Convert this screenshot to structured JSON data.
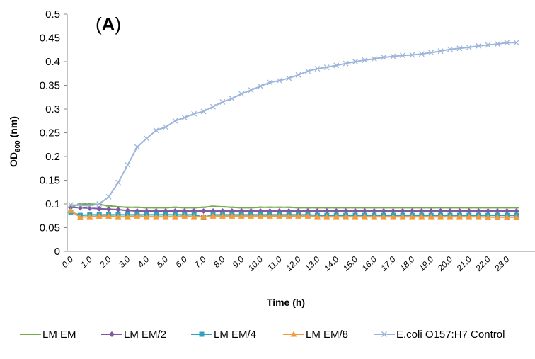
{
  "chart_data": {
    "type": "line",
    "panel_label_prefix": "(",
    "panel_label_letter": "A",
    "panel_label_suffix": ")",
    "xlabel": "Time (h)",
    "ylabel": "OD",
    "ylabel_subscript": "600",
    "ylabel_suffix": " (nm)",
    "ylim": [
      0,
      0.5
    ],
    "yticks": [
      "0",
      "0.05",
      "0.1",
      "0.15",
      "0.2",
      "0.25",
      "0.3",
      "0.35",
      "0.4",
      "0.45",
      "0.5"
    ],
    "x_step": 0.5,
    "xticks": [
      "0.0",
      "1.0",
      "2.0",
      "3.0",
      "4.0",
      "5.0",
      "6.0",
      "7.0",
      "8.0",
      "9.0",
      "10.0",
      "11.0",
      "12.0",
      "13.0",
      "14.0",
      "15.0",
      "16.0",
      "17.0",
      "18.0",
      "19.0",
      "20.0",
      "21.0",
      "22.0",
      "23.0"
    ],
    "grid": false,
    "legend_position": "bottom",
    "series": [
      {
        "name": "LM EM",
        "color": "#77ac4a",
        "marker": "dash",
        "values": [
          0.093,
          0.1,
          0.1,
          0.099,
          0.096,
          0.094,
          0.093,
          0.093,
          0.092,
          0.092,
          0.092,
          0.093,
          0.092,
          0.092,
          0.093,
          0.095,
          0.094,
          0.093,
          0.092,
          0.092,
          0.093,
          0.093,
          0.093,
          0.093,
          0.092,
          0.092,
          0.092,
          0.092,
          0.092,
          0.092,
          0.092,
          0.092,
          0.092,
          0.092,
          0.092,
          0.092,
          0.092,
          0.092,
          0.092,
          0.092,
          0.092,
          0.092,
          0.092,
          0.092,
          0.092,
          0.092,
          0.092,
          0.092
        ]
      },
      {
        "name": "LM EM/2",
        "color": "#7e5aa5",
        "marker": "diamond",
        "values": [
          0.093,
          0.092,
          0.091,
          0.09,
          0.089,
          0.088,
          0.086,
          0.085,
          0.085,
          0.085,
          0.085,
          0.085,
          0.085,
          0.085,
          0.085,
          0.085,
          0.085,
          0.085,
          0.085,
          0.085,
          0.085,
          0.085,
          0.085,
          0.085,
          0.085,
          0.085,
          0.085,
          0.085,
          0.085,
          0.085,
          0.085,
          0.085,
          0.085,
          0.085,
          0.085,
          0.085,
          0.085,
          0.085,
          0.085,
          0.085,
          0.085,
          0.085,
          0.085,
          0.085,
          0.085,
          0.085,
          0.085,
          0.085
        ]
      },
      {
        "name": "LM EM/4",
        "color": "#2fa3bc",
        "marker": "square",
        "values": [
          0.083,
          0.076,
          0.077,
          0.077,
          0.077,
          0.077,
          0.077,
          0.077,
          0.077,
          0.077,
          0.077,
          0.077,
          0.077,
          0.077,
          0.072,
          0.077,
          0.077,
          0.077,
          0.077,
          0.077,
          0.077,
          0.077,
          0.077,
          0.077,
          0.077,
          0.077,
          0.076,
          0.076,
          0.076,
          0.076,
          0.076,
          0.076,
          0.076,
          0.076,
          0.076,
          0.076,
          0.076,
          0.076,
          0.076,
          0.076,
          0.076,
          0.076,
          0.076,
          0.076,
          0.076,
          0.076,
          0.076,
          0.076
        ]
      },
      {
        "name": "LM EM/8",
        "color": "#f39a3b",
        "marker": "triangle",
        "values": [
          0.086,
          0.072,
          0.073,
          0.074,
          0.074,
          0.073,
          0.073,
          0.074,
          0.073,
          0.073,
          0.073,
          0.073,
          0.074,
          0.073,
          0.073,
          0.074,
          0.074,
          0.074,
          0.074,
          0.074,
          0.074,
          0.074,
          0.074,
          0.074,
          0.074,
          0.074,
          0.073,
          0.073,
          0.073,
          0.073,
          0.073,
          0.073,
          0.073,
          0.073,
          0.073,
          0.073,
          0.073,
          0.073,
          0.073,
          0.073,
          0.073,
          0.073,
          0.073,
          0.073,
          0.072,
          0.072,
          0.072,
          0.072
        ]
      },
      {
        "name": "E.coli O157:H7 Control",
        "color": "#9db5db",
        "marker": "x",
        "values": [
          0.098,
          0.097,
          0.096,
          0.1,
          0.115,
          0.145,
          0.182,
          0.22,
          0.238,
          0.255,
          0.262,
          0.275,
          0.282,
          0.29,
          0.295,
          0.305,
          0.315,
          0.322,
          0.332,
          0.34,
          0.348,
          0.356,
          0.36,
          0.365,
          0.372,
          0.38,
          0.385,
          0.388,
          0.392,
          0.396,
          0.4,
          0.403,
          0.406,
          0.409,
          0.411,
          0.413,
          0.414,
          0.416,
          0.419,
          0.422,
          0.426,
          0.428,
          0.43,
          0.433,
          0.435,
          0.437,
          0.44,
          0.44
        ]
      }
    ]
  }
}
